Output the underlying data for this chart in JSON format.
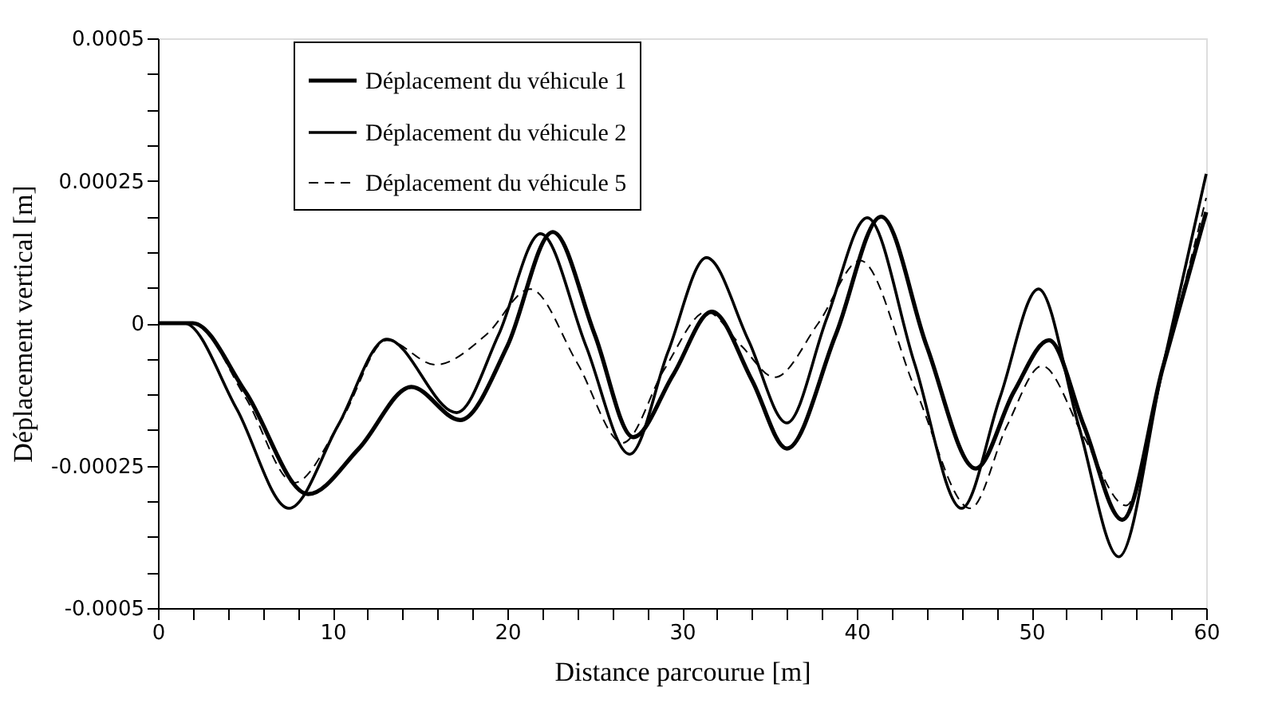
{
  "chart_data": {
    "type": "line",
    "xlabel": "Distance parcourue [m]",
    "ylabel": "Déplacement vertical [m]",
    "xlim": [
      0,
      60
    ],
    "ylim": [
      -0.0005,
      0.0005
    ],
    "xticks": [
      0,
      {
        "value": 2,
        "label": null
      },
      {
        "value": 4,
        "label": null
      },
      {
        "value": 6,
        "label": null
      },
      {
        "value": 8,
        "label": null
      },
      10,
      {
        "value": 12,
        "label": null
      },
      {
        "value": 14,
        "label": null
      },
      {
        "value": 16,
        "label": null
      },
      {
        "value": 18,
        "label": null
      },
      20,
      {
        "value": 22,
        "label": null
      },
      {
        "value": 24,
        "label": null
      },
      {
        "value": 26,
        "label": null
      },
      {
        "value": 28,
        "label": null
      },
      30,
      {
        "value": 32,
        "label": null
      },
      {
        "value": 34,
        "label": null
      },
      {
        "value": 36,
        "label": null
      },
      {
        "value": 38,
        "label": null
      },
      40,
      {
        "value": 42,
        "label": null
      },
      {
        "value": 44,
        "label": null
      },
      {
        "value": 46,
        "label": null
      },
      {
        "value": 48,
        "label": null
      },
      50,
      {
        "value": 52,
        "label": null
      },
      {
        "value": 54,
        "label": null
      },
      {
        "value": 56,
        "label": null
      },
      {
        "value": 58,
        "label": null
      },
      60
    ],
    "yticks": [
      -0.0005,
      {
        "value": -0.0004375,
        "label": null
      },
      {
        "value": -0.000375,
        "label": null
      },
      {
        "value": -0.0003125,
        "label": null
      },
      -0.00025,
      {
        "value": -0.0001875,
        "label": null
      },
      {
        "value": -0.000125,
        "label": null
      },
      {
        "value": -6.25e-05,
        "label": null
      },
      0,
      {
        "value": 6.25e-05,
        "label": null
      },
      {
        "value": 0.000125,
        "label": null
      },
      {
        "value": 0.0001875,
        "label": null
      },
      0.00025,
      {
        "value": 0.0003125,
        "label": null
      },
      {
        "value": 0.000375,
        "label": null
      },
      {
        "value": 0.0004375,
        "label": null
      },
      0.0005
    ],
    "grid": false,
    "legend": "top",
    "marker": "none",
    "series": [
      {
        "name": "Déplacement du véhicule 1",
        "color": "#000000",
        "line_style": "solid",
        "x": [
          0,
          2,
          5,
          8.6,
          11.5,
          14.5,
          17.3,
          20,
          22.6,
          25,
          27.2,
          29.5,
          31.7,
          34,
          36,
          38.8,
          41.4,
          44,
          46.8,
          49,
          51,
          53,
          55.2,
          57.5,
          60
        ],
        "values": [
          0,
          0,
          -0.00012,
          -0.0003,
          -0.00022,
          -0.000112,
          -0.00017,
          -4e-05,
          0.00016,
          -2e-05,
          -0.0002,
          -9e-05,
          2e-05,
          -0.0001,
          -0.00022,
          -2e-05,
          0.000187,
          -4e-05,
          -0.000255,
          -0.00012,
          -3e-05,
          -0.00018,
          -0.000345,
          -8e-05,
          0.000195
        ]
      },
      {
        "name": "Déplacement du véhicule 2",
        "color": "#000000",
        "line_style": "solid",
        "x": [
          0,
          1.5,
          4.5,
          7.5,
          10.3,
          13.1,
          17.1,
          19.5,
          21.9,
          24.5,
          27,
          29.2,
          31.4,
          33.8,
          36,
          38.3,
          40.6,
          43.3,
          46,
          48.2,
          50.4,
          52.7,
          55,
          57.5,
          60
        ],
        "values": [
          0,
          0,
          -0.00015,
          -0.000325,
          -0.00018,
          -2.8e-05,
          -0.000157,
          -2e-05,
          0.000157,
          -4e-05,
          -0.00023,
          -5e-05,
          0.000115,
          -3e-05,
          -0.000175,
          1e-05,
          0.000185,
          -7e-05,
          -0.000325,
          -0.00013,
          6e-05,
          -0.00018,
          -0.00041,
          -8e-05,
          0.000262
        ]
      },
      {
        "name": "Déplacement du véhicule 5",
        "color": "#000000",
        "line_style": "dashed",
        "x": [
          0,
          2,
          5,
          7.8,
          10.5,
          13.1,
          15.9,
          18.8,
          21.3,
          24,
          26.6,
          29,
          31.4,
          33.4,
          35.3,
          37.8,
          40.2,
          43.4,
          46.5,
          48.6,
          50.6,
          53,
          55.4,
          57.7,
          60
        ],
        "values": [
          0,
          0,
          -0.00013,
          -0.00028,
          -0.00017,
          -3e-05,
          -7.3e-05,
          -2e-05,
          6e-05,
          -7e-05,
          -0.00021,
          -8e-05,
          2e-05,
          -4e-05,
          -9.5e-05,
          0,
          0.00011,
          -0.00012,
          -0.000325,
          -0.00018,
          -7.5e-05,
          -0.0002,
          -0.00032,
          -6e-05,
          0.00022
        ]
      }
    ]
  }
}
